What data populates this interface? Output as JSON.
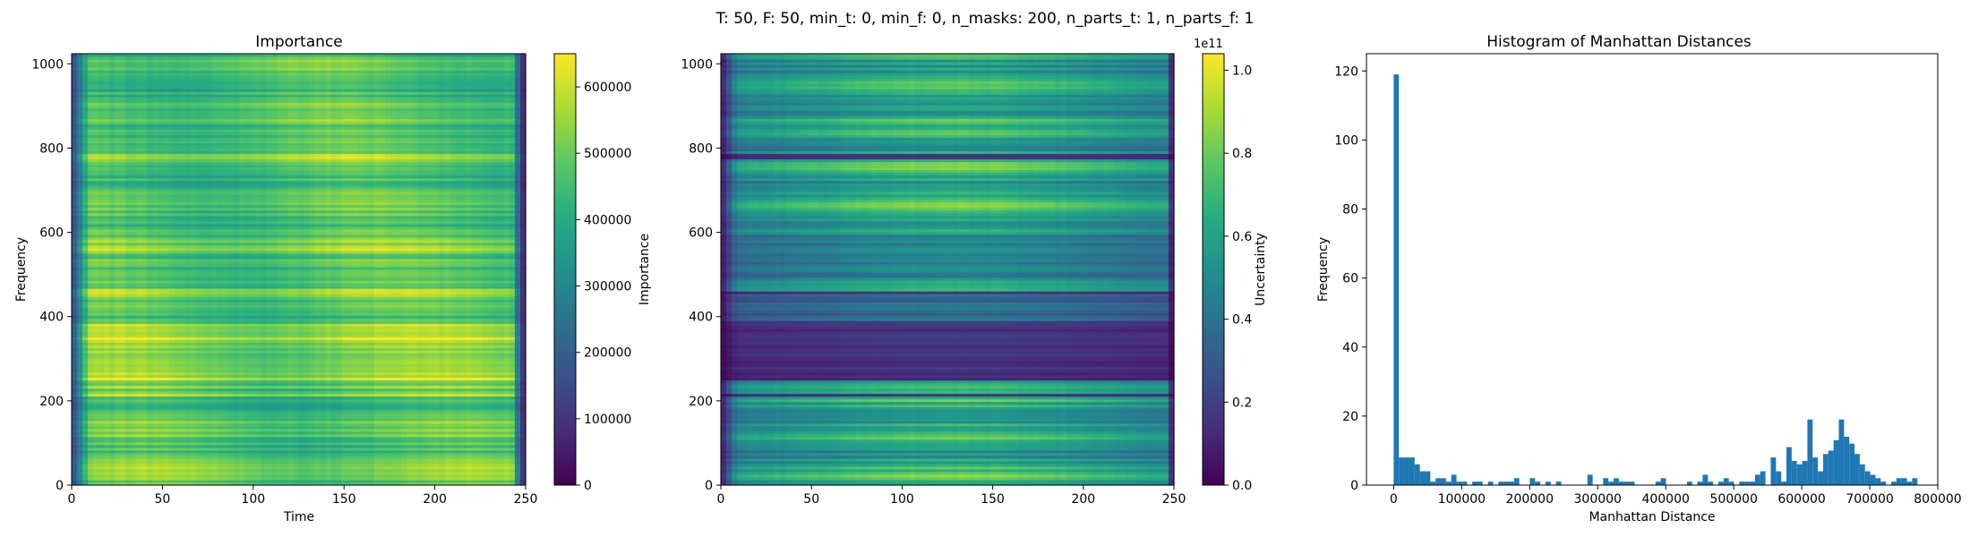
{
  "figure": {
    "suptitle": "T: 50, F: 50, min_t: 0, min_f: 0, n_masks: 200, n_parts_t: 1, n_parts_f: 1"
  },
  "chart_data": [
    {
      "type": "heatmap",
      "title": "Importance",
      "xlabel": "Time",
      "ylabel": "Frequency",
      "xlim": [
        0,
        250
      ],
      "ylim": [
        0,
        1024
      ],
      "xticks": [
        "0",
        "50",
        "100",
        "150",
        "200",
        "250"
      ],
      "yticks": [
        "0",
        "200",
        "400",
        "600",
        "800",
        "1000"
      ],
      "colormap": "viridis",
      "colorbar": {
        "label": "Importance",
        "range": [
          0,
          650000
        ],
        "ticks": [
          "0",
          "100000",
          "200000",
          "300000",
          "400000",
          "500000",
          "600000"
        ],
        "offset_text": ""
      }
    },
    {
      "type": "heatmap",
      "title": "",
      "xlabel": "",
      "ylabel": "",
      "xlim": [
        0,
        250
      ],
      "ylim": [
        0,
        1024
      ],
      "xticks": [
        "0",
        "50",
        "100",
        "150",
        "200",
        "250"
      ],
      "yticks": [
        "0",
        "200",
        "400",
        "600",
        "800",
        "1000"
      ],
      "colormap": "viridis",
      "colorbar": {
        "label": "Uncertainty",
        "range": [
          0,
          1.04
        ],
        "ticks": [
          "0.0",
          "0.2",
          "0.4",
          "0.6",
          "0.8",
          "1.0"
        ],
        "offset_text": "1e11"
      }
    },
    {
      "type": "bar",
      "title": "Histogram of Manhattan Distances",
      "xlabel": "Manhattan Distance",
      "ylabel": "Frequency",
      "xlim": [
        -40000,
        800000
      ],
      "ylim": [
        0,
        125
      ],
      "bin_width": 7700,
      "xticks": [
        "0",
        "100000",
        "200000",
        "300000",
        "400000",
        "500000",
        "600000",
        "700000",
        "800000"
      ],
      "yticks": [
        "0",
        "20",
        "40",
        "60",
        "80",
        "100",
        "120"
      ],
      "bar_color": "#1f77b4",
      "bins": [
        [
          0,
          119
        ],
        [
          7700,
          8
        ],
        [
          15400,
          8
        ],
        [
          23100,
          8
        ],
        [
          30800,
          6
        ],
        [
          38500,
          4
        ],
        [
          46200,
          4
        ],
        [
          53900,
          1
        ],
        [
          61600,
          2
        ],
        [
          69300,
          2
        ],
        [
          77000,
          1
        ],
        [
          84700,
          3
        ],
        [
          92400,
          1
        ],
        [
          100100,
          1
        ],
        [
          115500,
          1
        ],
        [
          123200,
          1
        ],
        [
          138600,
          1
        ],
        [
          154000,
          1
        ],
        [
          161700,
          1
        ],
        [
          169400,
          1
        ],
        [
          177100,
          2
        ],
        [
          200200,
          2
        ],
        [
          207900,
          1
        ],
        [
          223300,
          1
        ],
        [
          238700,
          1
        ],
        [
          284900,
          3
        ],
        [
          308000,
          2
        ],
        [
          315700,
          1
        ],
        [
          323400,
          2
        ],
        [
          331100,
          1
        ],
        [
          338800,
          1
        ],
        [
          346500,
          1
        ],
        [
          385000,
          1
        ],
        [
          392700,
          2
        ],
        [
          431200,
          1
        ],
        [
          446600,
          1
        ],
        [
          454300,
          3
        ],
        [
          462000,
          1
        ],
        [
          477400,
          1
        ],
        [
          485100,
          2
        ],
        [
          492800,
          1
        ],
        [
          508200,
          1
        ],
        [
          515900,
          1
        ],
        [
          523600,
          1
        ],
        [
          531300,
          3
        ],
        [
          539000,
          4
        ],
        [
          554400,
          8
        ],
        [
          562100,
          4
        ],
        [
          569800,
          1
        ],
        [
          577500,
          11
        ],
        [
          585200,
          7
        ],
        [
          592900,
          6
        ],
        [
          600600,
          7
        ],
        [
          608300,
          19
        ],
        [
          616000,
          8
        ],
        [
          623700,
          4
        ],
        [
          631400,
          9
        ],
        [
          639100,
          10
        ],
        [
          646800,
          13
        ],
        [
          654500,
          19
        ],
        [
          662200,
          14
        ],
        [
          669900,
          12
        ],
        [
          677600,
          9
        ],
        [
          685300,
          6
        ],
        [
          693000,
          4
        ],
        [
          700700,
          3
        ],
        [
          708400,
          2
        ],
        [
          716100,
          1
        ],
        [
          731500,
          1
        ],
        [
          739200,
          2
        ],
        [
          746900,
          2
        ],
        [
          754600,
          1
        ],
        [
          762300,
          2
        ]
      ]
    }
  ]
}
